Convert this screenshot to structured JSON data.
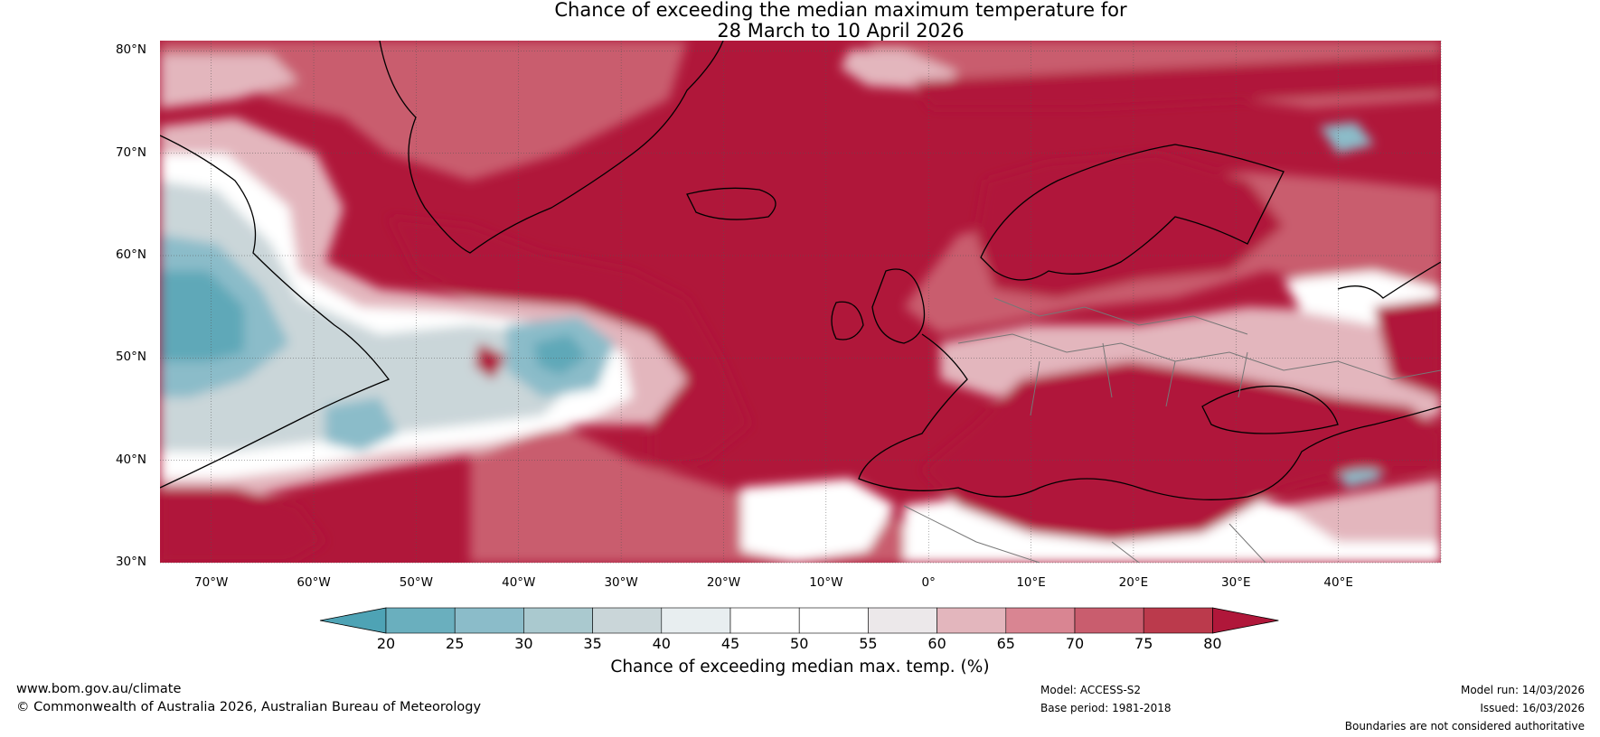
{
  "title_line1": "Chance of exceeding the median maximum temperature for",
  "title_line2": "28 March to 10 April 2026",
  "lat_labels": [
    "80°N",
    "70°N",
    "60°N",
    "50°N",
    "40°N",
    "30°N"
  ],
  "lon_labels": [
    "70°W",
    "60°W",
    "50°W",
    "40°W",
    "30°W",
    "20°W",
    "10°W",
    "0°",
    "10°E",
    "20°E",
    "30°E",
    "40°E"
  ],
  "colorbar": {
    "ticks": [
      "20",
      "25",
      "30",
      "35",
      "40",
      "45",
      "50",
      "55",
      "60",
      "65",
      "70",
      "75",
      "80"
    ],
    "colors": [
      "#4ea3b5",
      "#6aafbe",
      "#8bbcc9",
      "#aac9cf",
      "#cad6d9",
      "#e8eef0",
      "#ffffff",
      "#ffffff",
      "#ece8ea",
      "#e3b6bd",
      "#d98592",
      "#c95d6e",
      "#bb3a4c",
      "#b0173a"
    ],
    "label": "Chance of exceeding median max. temp. (%)"
  },
  "map_colors": {
    "ocean_high": "#b0173a",
    "warm": "#c95d6e",
    "mild_warm": "#e3b6bd",
    "neutral": "#ffffff",
    "cool_light": "#cad6d9",
    "cool": "#8bbcc9",
    "cool_strong": "#5fa8b8",
    "coast": "#000000",
    "border": "#777777"
  },
  "footer": {
    "website": "www.bom.gov.au/climate",
    "copyright": "© Commonwealth of Australia 2026, Australian Bureau of Meteorology",
    "model": "Model: ACCESS-S2",
    "base_period": "Base period: 1981-2018",
    "model_run": "Model run: 14/03/2026",
    "issued": "Issued: 16/03/2026",
    "disclaimer": "Boundaries are not considered authoritative"
  }
}
